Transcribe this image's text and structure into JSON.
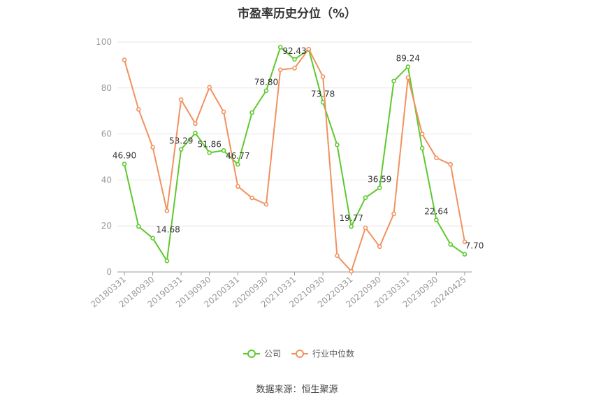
{
  "chart_data": {
    "type": "line",
    "title": "市盈率历史分位（%）",
    "source": "数据来源：恒生聚源",
    "ylim": [
      0,
      100
    ],
    "yticks": [
      0,
      20,
      40,
      60,
      80,
      100
    ],
    "grid": true,
    "legend_position": "bottom",
    "x_tick_labels": [
      "20180331",
      "20180930",
      "20190331",
      "20190930",
      "20200331",
      "20200930",
      "20210331",
      "20210930",
      "20220331",
      "20220930",
      "20230331",
      "20230930",
      "20240425"
    ],
    "series": [
      {
        "name": "公司",
        "color": "#5ec92e",
        "values": [
          46.9,
          19.8,
          14.68,
          4.8,
          53.29,
          60.4,
          51.86,
          52.8,
          46.77,
          69.3,
          78.8,
          97.7,
          92.43,
          96.7,
          73.78,
          55.3,
          19.77,
          32.3,
          36.59,
          83.0,
          89.24,
          53.8,
          22.64,
          12.0,
          7.7
        ]
      },
      {
        "name": "行业中位数",
        "color": "#f2915e",
        "values": [
          92.2,
          70.7,
          54.2,
          26.6,
          74.9,
          64.5,
          80.3,
          69.6,
          37.2,
          32.2,
          29.4,
          87.9,
          88.6,
          96.9,
          84.9,
          7.1,
          0.3,
          19.2,
          11.0,
          25.3,
          84.5,
          60.0,
          49.6,
          46.8,
          13.1
        ]
      }
    ],
    "labeled_points": [
      {
        "index": 0,
        "text": "46.90"
      },
      {
        "index": 2,
        "text": "14.68"
      },
      {
        "index": 4,
        "text": "53.29"
      },
      {
        "index": 6,
        "text": "51.86"
      },
      {
        "index": 8,
        "text": "46.77"
      },
      {
        "index": 10,
        "text": "78.80"
      },
      {
        "index": 12,
        "text": "92.43"
      },
      {
        "index": 14,
        "text": "73.78"
      },
      {
        "index": 16,
        "text": "19.77"
      },
      {
        "index": 18,
        "text": "36.59"
      },
      {
        "index": 20,
        "text": "89.24"
      },
      {
        "index": 22,
        "text": "22.64"
      },
      {
        "index": 24,
        "text": "7.70"
      }
    ]
  }
}
